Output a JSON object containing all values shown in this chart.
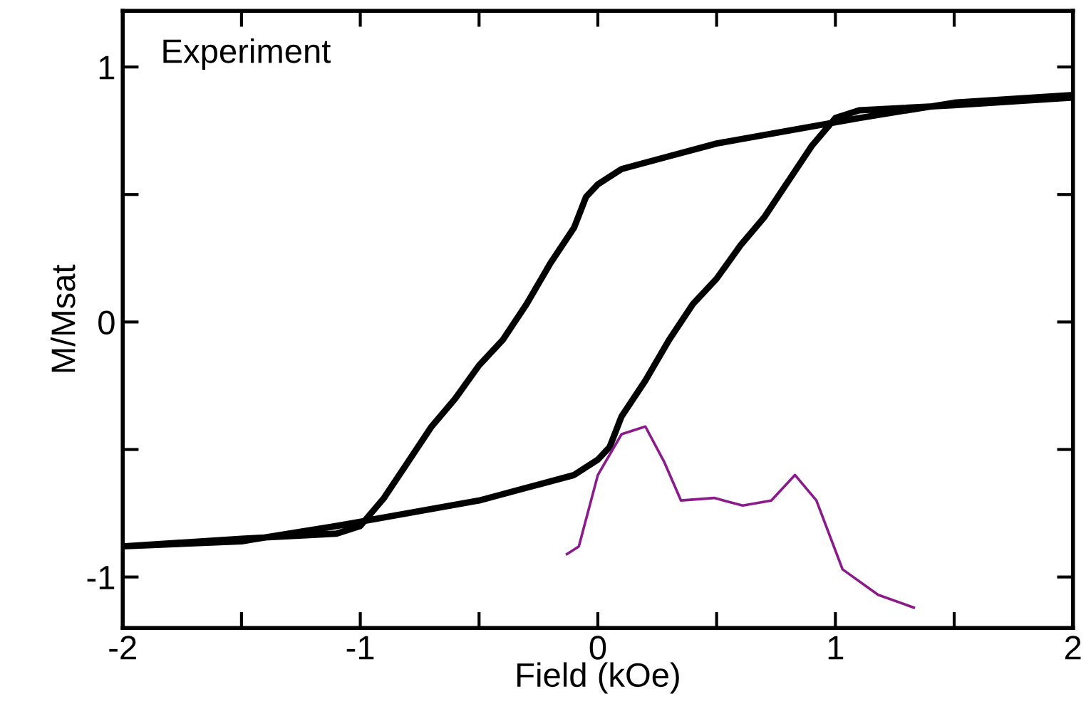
{
  "chart_data": {
    "type": "line",
    "xlabel": "Field (kOe)",
    "ylabel": "M/Msat",
    "annotations": [
      "Experiment"
    ],
    "xlim": [
      -2,
      2
    ],
    "ylim": [
      -1.2,
      1.22
    ],
    "xticks": [
      -2,
      {
        "value": -1.5,
        "label": null
      },
      -1,
      {
        "value": -0.5,
        "label": null
      },
      0,
      {
        "value": 0.5,
        "label": null
      },
      1,
      {
        "value": 1.5,
        "label": null
      },
      2
    ],
    "yticks": [
      -1,
      {
        "value": -0.5,
        "label": null
      },
      0,
      {
        "value": 0.5,
        "label": null
      },
      1
    ],
    "grid": false,
    "legend": false,
    "marker": "none",
    "line_style": "solid",
    "series": [
      {
        "color": "#000000",
        "x": [
          2,
          1.5,
          1.1,
          0.5,
          0.3,
          0.1,
          0,
          -0.05,
          -0.1,
          -0.2,
          -0.3,
          -0.4,
          -0.5,
          -0.6,
          -0.7,
          -0.8,
          -0.9,
          -1.0,
          -1.1,
          -1.5,
          -2,
          -1.5,
          -1.1,
          -0.5,
          -0.3,
          -0.1,
          0,
          0.05,
          0.1,
          0.2,
          0.3,
          0.4,
          0.5,
          0.6,
          0.7,
          0.8,
          0.9,
          1.0,
          1.1,
          1.5,
          2
        ],
        "values": [
          0.89,
          0.86,
          0.8,
          0.7,
          0.65,
          0.6,
          0.54,
          0.49,
          0.37,
          0.23,
          0.07,
          -0.07,
          -0.17,
          -0.3,
          -0.41,
          -0.55,
          -0.69,
          -0.8,
          -0.83,
          -0.85,
          -0.88,
          -0.86,
          -0.8,
          -0.7,
          -0.65,
          -0.6,
          -0.54,
          -0.49,
          -0.37,
          -0.23,
          -0.07,
          0.07,
          0.17,
          0.3,
          0.41,
          0.55,
          0.69,
          0.8,
          0.83,
          0.85,
          0.88
        ]
      },
      {
        "color": "#8b1a8b",
        "x": [
          -0.13,
          -0.08,
          0.0,
          0.1,
          0.2,
          0.28,
          0.35,
          0.49,
          0.61,
          0.73,
          0.83,
          0.92,
          1.03,
          1.18,
          1.33
        ],
        "values": [
          -0.91,
          -0.88,
          -0.6,
          -0.44,
          -0.41,
          -0.55,
          -0.7,
          -0.69,
          -0.72,
          -0.7,
          -0.6,
          -0.7,
          -0.97,
          -1.07,
          -1.12
        ]
      }
    ]
  }
}
